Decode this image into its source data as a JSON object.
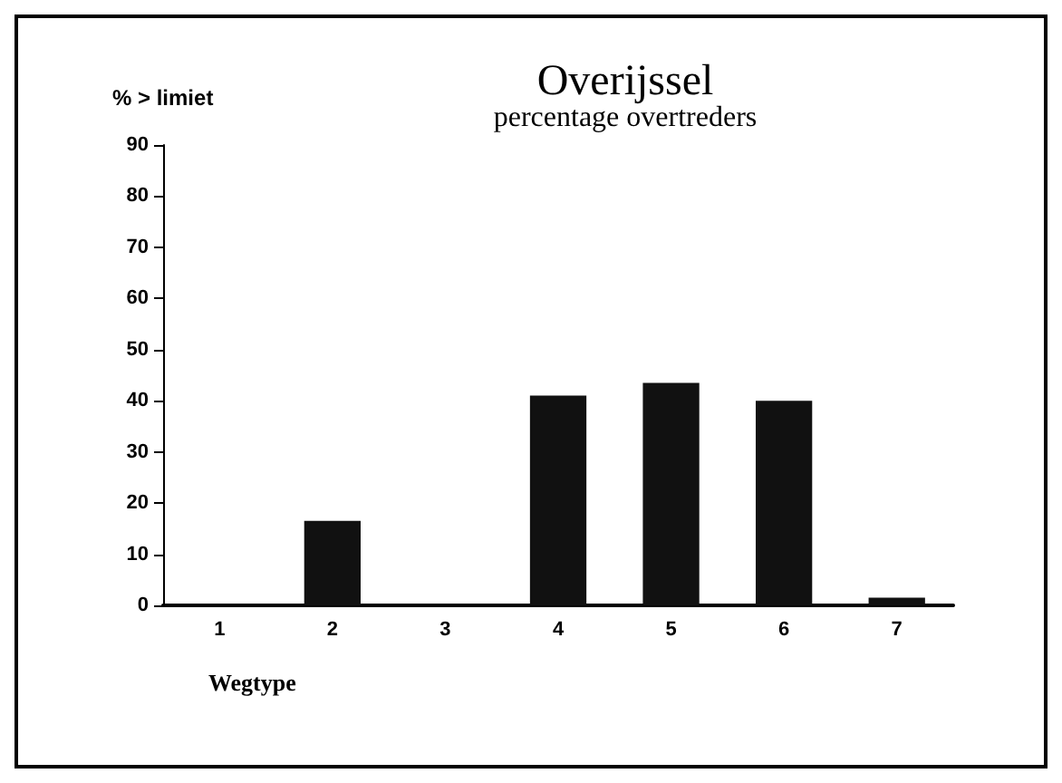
{
  "chart_data": {
    "type": "bar",
    "title": "Overijssel",
    "subtitle": "percentage overtreders",
    "ylabel": "% > limiet",
    "xlabel": "Wegtype",
    "categories": [
      "1",
      "2",
      "3",
      "4",
      "5",
      "6",
      "7"
    ],
    "values": [
      0,
      16.5,
      0,
      41,
      43.5,
      40,
      1.5
    ],
    "color": "#111111",
    "ylim": [
      0,
      90
    ],
    "yticks": [
      0,
      10,
      20,
      30,
      40,
      50,
      60,
      70,
      80,
      90
    ],
    "grid": false
  }
}
